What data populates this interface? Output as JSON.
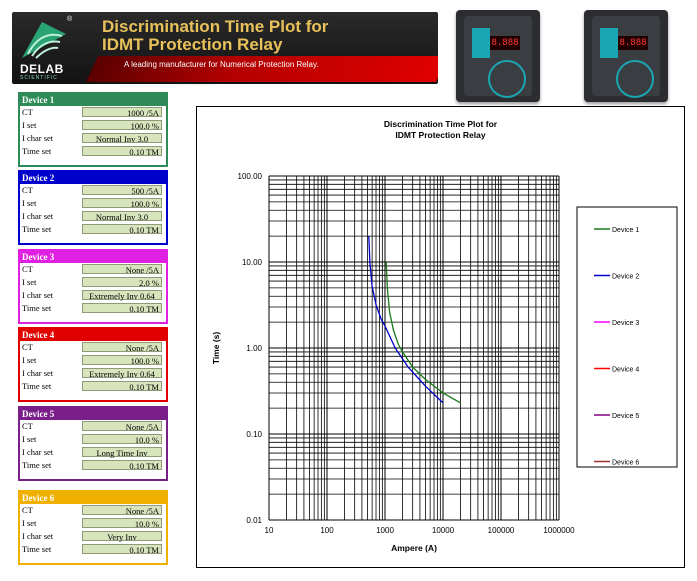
{
  "header": {
    "logo_text": "DELAB",
    "logo_sub": "SCIENTIFIC",
    "title_line1": "Discrimination Time Plot for",
    "title_line2": "IDMT Protection Relay",
    "tagline": "A leading manufacturer for Numerical Protection Relay."
  },
  "devices": [
    {
      "name": "Device 1",
      "color": "#2e8b57",
      "ct": "1000 /5A",
      "iset": "100.0 %",
      "ichar": "Normal Inv 3.0",
      "tm": "0.10  TM"
    },
    {
      "name": "Device 2",
      "color": "#0000cc",
      "ct": "500 /5A",
      "iset": "100.0 %",
      "ichar": "Normal Inv 3.0",
      "tm": "0.10  TM"
    },
    {
      "name": "Device 3",
      "color": "#e020e0",
      "ct": "None /5A",
      "iset": "2.0 %",
      "ichar": "Extremely Inv 0.64",
      "tm": "0.10  TM"
    },
    {
      "name": "Device 4",
      "color": "#e00000",
      "ct": "None /5A",
      "iset": "100.0 %",
      "ichar": "Extremely Inv 0.64",
      "tm": "0.10  TM"
    },
    {
      "name": "Device 5",
      "color": "#7a1f8a",
      "ct": "None /5A",
      "iset": "10.0 %",
      "ichar": "Long Time Inv",
      "tm": "0.10  TM"
    },
    {
      "name": "Device 6",
      "color": "#f0b000",
      "ct": "None /5A",
      "iset": "10.0 %",
      "ichar": "Very Inv",
      "tm": "0.10  TM"
    }
  ],
  "labels": {
    "ct": "CT",
    "iset": "I set",
    "ichar": "I char set",
    "tm": "Time set"
  },
  "relays": [
    {
      "display": "8.888"
    },
    {
      "display": "8.888"
    }
  ],
  "chart_data": {
    "type": "line",
    "title": "Discrimination Time Plot for\nIDMT Protection Relay",
    "title_line1": "Discrimination Time Plot for",
    "title_line2": "IDMT Protection Relay",
    "xlabel": "Ampere (A)",
    "ylabel": "Time (s)",
    "xscale": "log",
    "yscale": "log",
    "xlim": [
      10,
      1000000
    ],
    "ylim": [
      0.01,
      100
    ],
    "xticks": [
      "10",
      "100",
      "1000",
      "10000",
      "100000",
      "1000000"
    ],
    "yticks": [
      "0.01",
      "0.10",
      "1.00",
      "10.00",
      "100.00"
    ],
    "grid": true,
    "legend_position": "right",
    "series": [
      {
        "name": "Device 1",
        "color": "#1a7a1a",
        "x": [
          1050,
          1100,
          1200,
          1400,
          1700,
          2000,
          3000,
          5000,
          10000,
          20000
        ],
        "y": [
          10.0,
          4.9,
          2.6,
          1.6,
          1.1,
          0.9,
          0.6,
          0.43,
          0.3,
          0.23
        ]
      },
      {
        "name": "Device 2",
        "color": "#0000cc",
        "x": [
          525,
          550,
          600,
          700,
          850,
          1000,
          1500,
          2500,
          5000,
          10000
        ],
        "y": [
          20.0,
          9.8,
          5.2,
          3.2,
          2.2,
          1.8,
          1.0,
          0.6,
          0.36,
          0.23
        ]
      },
      {
        "name": "Device 3",
        "color": "#ff00ff",
        "x": [],
        "y": []
      },
      {
        "name": "Device 4",
        "color": "#ff0000",
        "x": [],
        "y": []
      },
      {
        "name": "Device 5",
        "color": "#800080",
        "x": [],
        "y": []
      },
      {
        "name": "Device 6",
        "color": "#993333",
        "x": [],
        "y": []
      }
    ]
  }
}
